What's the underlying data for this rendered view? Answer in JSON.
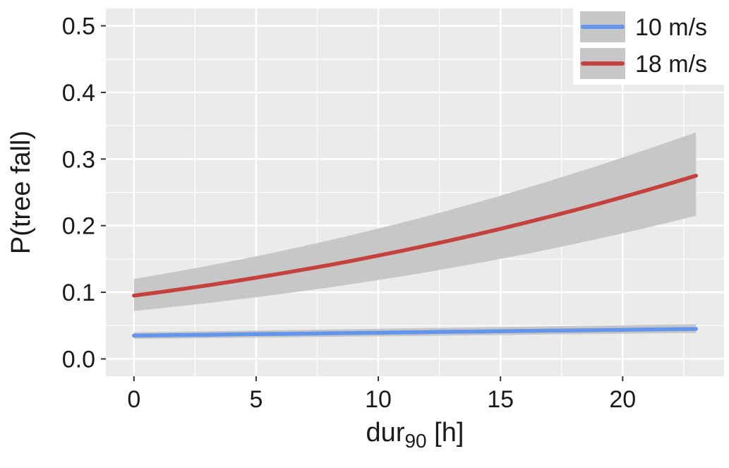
{
  "chart_data": {
    "type": "line",
    "title": "",
    "xlabel": {
      "base": "dur",
      "sub": "90",
      "rest": " [h]"
    },
    "ylabel": "P(tree fall)",
    "xlim": [
      -1.15,
      24.15
    ],
    "ylim": [
      -0.026,
      0.526
    ],
    "x_ticks": [
      0,
      5,
      10,
      15,
      20
    ],
    "x_tick_labels": [
      "0",
      "5",
      "10",
      "15",
      "20"
    ],
    "x_minor_ticks": [
      2.5,
      7.5,
      12.5,
      17.5,
      22.5
    ],
    "y_ticks": [
      0.0,
      0.1,
      0.2,
      0.3,
      0.4,
      0.5
    ],
    "y_tick_labels": [
      "0.0",
      "0.1",
      "0.2",
      "0.3",
      "0.4",
      "0.5"
    ],
    "y_minor_ticks": [
      0.05,
      0.15,
      0.25,
      0.35,
      0.45
    ],
    "grid": true,
    "legend_position": "top-right",
    "x": [
      0,
      1,
      2,
      3,
      4,
      5,
      6,
      7,
      8,
      9,
      10,
      11,
      12,
      13,
      14,
      15,
      16,
      17,
      18,
      19,
      20,
      21,
      22,
      23
    ],
    "series": [
      {
        "name": "10 m/s",
        "color": "#6495ED",
        "y": [
          0.035,
          0.0354,
          0.0359,
          0.0363,
          0.0367,
          0.0372,
          0.0376,
          0.038,
          0.0385,
          0.0389,
          0.0393,
          0.0398,
          0.0402,
          0.0407,
          0.0411,
          0.0415,
          0.042,
          0.0424,
          0.0428,
          0.0433,
          0.0437,
          0.0441,
          0.0446,
          0.045
        ],
        "lower": [
          0.03,
          0.0304,
          0.0308,
          0.0312,
          0.0316,
          0.032,
          0.0323,
          0.0327,
          0.0331,
          0.0335,
          0.0339,
          0.0343,
          0.0347,
          0.0351,
          0.0355,
          0.0359,
          0.0363,
          0.0367,
          0.037,
          0.0374,
          0.0378,
          0.0382,
          0.0386,
          0.039
        ],
        "upper": [
          0.04,
          0.0405,
          0.041,
          0.0416,
          0.0421,
          0.0426,
          0.0431,
          0.0437,
          0.0442,
          0.0447,
          0.0452,
          0.0457,
          0.0463,
          0.0468,
          0.0473,
          0.0478,
          0.0483,
          0.0489,
          0.0494,
          0.0499,
          0.0504,
          0.051,
          0.0515,
          0.052
        ]
      },
      {
        "name": "18 m/s",
        "color": "#C5413E",
        "y": [
          0.095,
          0.0999,
          0.1051,
          0.1104,
          0.116,
          0.1219,
          0.128,
          0.1344,
          0.141,
          0.1479,
          0.1551,
          0.1625,
          0.1703,
          0.1783,
          0.1866,
          0.1952,
          0.2042,
          0.2134,
          0.2229,
          0.2327,
          0.2429,
          0.2533,
          0.264,
          0.275
        ],
        "lower": [
          0.072,
          0.0757,
          0.0797,
          0.0838,
          0.0881,
          0.0926,
          0.0973,
          0.1022,
          0.1074,
          0.1128,
          0.1184,
          0.1242,
          0.1303,
          0.1366,
          0.1432,
          0.1501,
          0.1572,
          0.1646,
          0.1723,
          0.1803,
          0.1885,
          0.197,
          0.2059,
          0.215
        ],
        "upper": [
          0.12,
          0.1263,
          0.1328,
          0.1396,
          0.1466,
          0.154,
          0.1617,
          0.1697,
          0.178,
          0.1866,
          0.1956,
          0.2048,
          0.2144,
          0.2243,
          0.2345,
          0.245,
          0.2558,
          0.267,
          0.2785,
          0.2902,
          0.3023,
          0.3146,
          0.3272,
          0.34
        ]
      }
    ],
    "style": {
      "panel_bg": "#EBEBEB",
      "grid_color": "#FFFFFF",
      "ribbon_color": "#C7C7C7",
      "legend_bg": "#FFFFFF",
      "legend_key_bg": "#C7C7C7",
      "axis_text_color": "#1a1a1a",
      "tick_color": "#333333"
    }
  }
}
